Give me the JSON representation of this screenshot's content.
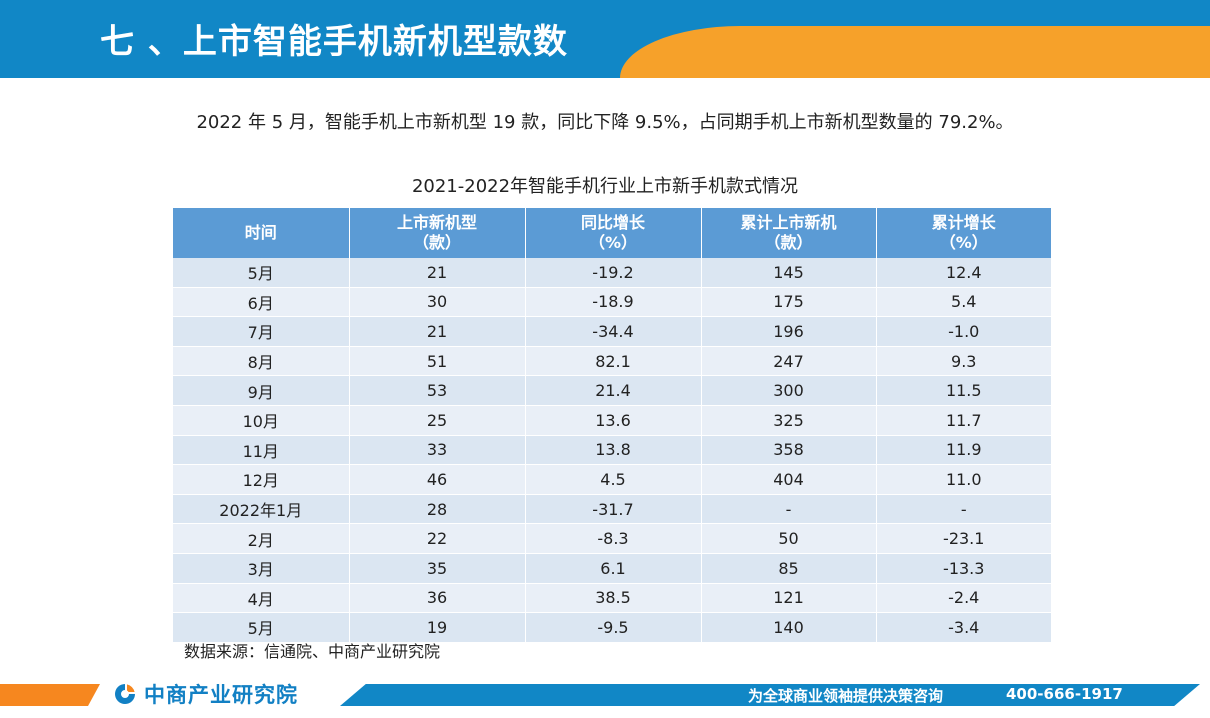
{
  "header": {
    "title": "七 、上市智能手机新机型款数"
  },
  "summary": "2022 年 5 月，智能手机上市新机型 19 款，同比下降 9.5%，占同期手机上市新机型数量的 79.2%。",
  "table": {
    "caption": "2021-2022年智能手机行业上市新手机款式情况",
    "columns": [
      {
        "line1": "时间",
        "line2": ""
      },
      {
        "line1": "上市新机型",
        "line2": "（款）"
      },
      {
        "line1": "同比增长",
        "line2": "（%）"
      },
      {
        "line1": "累计上市新机",
        "line2": "（款）"
      },
      {
        "line1": "累计增长",
        "line2": "（%）"
      }
    ],
    "rows": [
      [
        "5月",
        "21",
        "-19.2",
        "145",
        "12.4"
      ],
      [
        "6月",
        "30",
        "-18.9",
        "175",
        "5.4"
      ],
      [
        "7月",
        "21",
        "-34.4",
        "196",
        "-1.0"
      ],
      [
        "8月",
        "51",
        "82.1",
        "247",
        "9.3"
      ],
      [
        "9月",
        "53",
        "21.4",
        "300",
        "11.5"
      ],
      [
        "10月",
        "25",
        "13.6",
        "325",
        "11.7"
      ],
      [
        "11月",
        "33",
        "13.8",
        "358",
        "11.9"
      ],
      [
        "12月",
        "46",
        "4.5",
        "404",
        "11.0"
      ],
      [
        "2022年1月",
        "28",
        "-31.7",
        "-",
        "-"
      ],
      [
        "2月",
        "22",
        "-8.3",
        "50",
        "-23.1"
      ],
      [
        "3月",
        "35",
        "6.1",
        "85",
        "-13.3"
      ],
      [
        "4月",
        "36",
        "38.5",
        "121",
        "-2.4"
      ],
      [
        "5月",
        "19",
        "-9.5",
        "140",
        "-3.4"
      ]
    ],
    "source": "数据来源：信通院、中商产业研究院"
  },
  "footer": {
    "logo_text": "中商产业研究院",
    "slogan": "为全球商业领袖提供决策咨询",
    "phone": "400-666-1917"
  },
  "colors": {
    "header_blue": "#1187c6",
    "accent_orange": "#f6a12a",
    "table_header": "#5b9bd5",
    "row_light": "#e9eff7",
    "row_dark": "#dbe6f2"
  }
}
